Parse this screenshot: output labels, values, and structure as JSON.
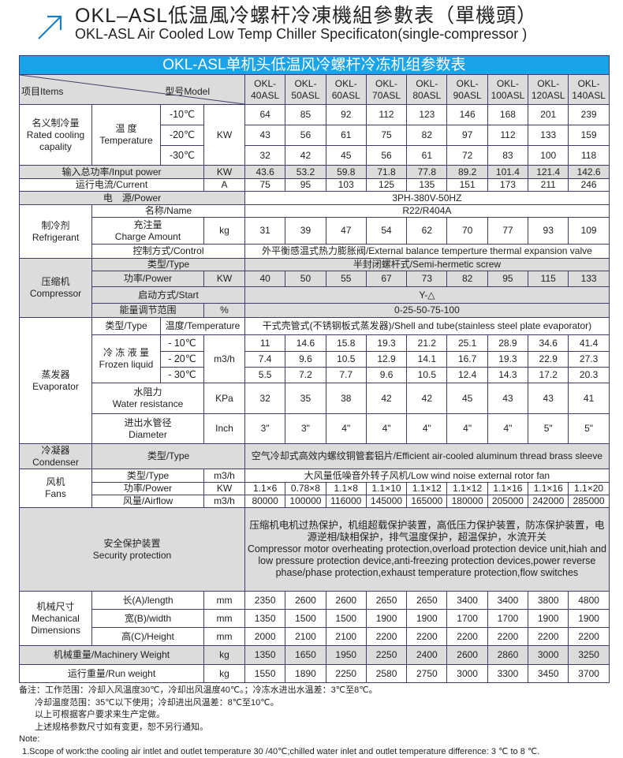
{
  "header": {
    "title_cn": "OKL–ASL低温風冷螺杆冷凍機組參數表（單機頭）",
    "title_en": "OKL-ASL Air Cooled Low Temp Chiller Specificaton(single-compressor )",
    "arrow_icon": "arrow-up-right-icon",
    "accent_color": "#1a7fc0"
  },
  "table": {
    "title": "OKL-ASL单机头低温风冷螺杆冷冻机组参数表",
    "title_bg": "#1aa3e8",
    "items_label": "项目Items",
    "model_label": "型号Model",
    "models": [
      [
        "OKL-",
        "40ASL"
      ],
      [
        "OKL-",
        "50ASL"
      ],
      [
        "OKL-",
        "60ASL"
      ],
      [
        "OKL-",
        "70ASL"
      ],
      [
        "OKL-",
        "80ASL"
      ],
      [
        "OKL-",
        "90ASL"
      ],
      [
        "OKL-",
        "100ASL"
      ],
      [
        "OKL-",
        "120ASL"
      ],
      [
        "OKL-",
        "140ASL"
      ]
    ],
    "cooling": {
      "label_cn": "名义制冷量",
      "label_en": "Rated cooling capality",
      "temp_cn": "温 度",
      "temp_en": "Temperature",
      "unit": "KW",
      "rows": [
        {
          "temp": "-10℃",
          "values": [
            "64",
            "85",
            "92",
            "112",
            "123",
            "146",
            "168",
            "201",
            "239"
          ]
        },
        {
          "temp": "-20℃",
          "values": [
            "43",
            "56",
            "61",
            "75",
            "82",
            "97",
            "112",
            "133",
            "159"
          ]
        },
        {
          "temp": "-30℃",
          "values": [
            "32",
            "42",
            "45",
            "56",
            "61",
            "72",
            "83",
            "100",
            "118"
          ]
        }
      ]
    },
    "input_power": {
      "label": "输入总功率/Input power",
      "unit": "KW",
      "values": [
        "43.6",
        "53.2",
        "59.8",
        "71.8",
        "77.8",
        "89.2",
        "101.4",
        "121.4",
        "142.6"
      ]
    },
    "current": {
      "label": "运行电流/Current",
      "unit": "A",
      "values": [
        "75",
        "95",
        "103",
        "125",
        "135",
        "151",
        "173",
        "211",
        "246"
      ]
    },
    "power": {
      "label": "电　源/Power",
      "value": "3PH-380V-50HZ"
    },
    "refrigerant": {
      "label_cn": "制冷剂",
      "label_en": "Refrigerant",
      "name_label": "名称/Name",
      "name_value": "R22/R404A",
      "charge_cn": "充注量",
      "charge_en": "Charge Amount",
      "charge_unit": "kg",
      "charge_values": [
        "31",
        "39",
        "47",
        "54",
        "62",
        "70",
        "77",
        "93",
        "109"
      ],
      "control_label": "控制方式/Control",
      "control_value": "外平衡感温式热力膨胀阀/External balance temperture thermal expansion valve"
    },
    "compressor": {
      "label_cn": "压缩机",
      "label_en": "Compressor",
      "type_label": "类型/Type",
      "type_value": "半封闭螺杆式/Semi-hermetic screw",
      "power_label": "功率/Power",
      "power_unit": "KW",
      "power_values": [
        "40",
        "50",
        "55",
        "67",
        "73",
        "82",
        "95",
        "115",
        "133"
      ],
      "start_label": "启动方式/Start",
      "start_value": "Y-△",
      "energy_label": "能量调节范围",
      "energy_unit": "%",
      "energy_value": "0-25-50-75-100"
    },
    "evaporator": {
      "label_cn": "蒸发器",
      "label_en": "Evaporator",
      "type_label": "类型/Type",
      "temp_label": "温度/Temperature",
      "type_value": "干式壳管式(不锈钢板式蒸发器)/Shell and tube(stainless steel plate evaporator)",
      "frozen_cn": "冷 冻 液 量",
      "frozen_en": "Frozen liquid",
      "frozen_unit": "m3/h",
      "frozen_rows": [
        {
          "temp": "- 10℃",
          "values": [
            "11",
            "14.6",
            "15.8",
            "19.3",
            "21.2",
            "25.1",
            "28.9",
            "34.6",
            "41.4"
          ]
        },
        {
          "temp": "- 20℃",
          "values": [
            "7.4",
            "9.6",
            "10.5",
            "12.9",
            "14.1",
            "16.7",
            "19.3",
            "22.9",
            "27.3"
          ]
        },
        {
          "temp": "- 30℃",
          "values": [
            "5.5",
            "7.2",
            "7.7",
            "9.6",
            "10.5",
            "12.4",
            "14.3",
            "17.2",
            "20.3"
          ]
        }
      ],
      "water_cn": "水阻力",
      "water_en": "Water resistance",
      "water_unit": "KPa",
      "water_values": [
        "32",
        "35",
        "38",
        "42",
        "42",
        "45",
        "43",
        "43",
        "41"
      ],
      "dia_cn": "进出水管径",
      "dia_en": "Diameter",
      "dia_unit": "Inch",
      "dia_values": [
        "3\"",
        "3\"",
        "4\"",
        "4\"",
        "4\"",
        "4\"",
        "4\"",
        "5\"",
        "5\""
      ]
    },
    "condenser": {
      "label_cn": "冷凝器",
      "label_en": "Condenser",
      "type_label": "类型/Type",
      "type_value": "空气冷却式高效内螺纹铜管套铝片/Efficient air-cooled aluminum thread brass sleeve"
    },
    "fans": {
      "label_cn": "风机",
      "label_en": "Fans",
      "type_label": "类型/Type",
      "type_unit": "m3/h",
      "type_value": "大风量低噪音外转子风机/Low wind noise external rotor fan",
      "power_label": "功率/Power",
      "power_unit": "KW",
      "power_values": [
        "1.1×6",
        "0.78×8",
        "1.1×8",
        "1.1×10",
        "1.1×12",
        "1.1×12",
        "1.1×16",
        "1.1×16",
        "1.1×20"
      ],
      "airflow_label": "风量/Airflow",
      "airflow_unit": "m3/h",
      "airflow_values": [
        "80000",
        "100000",
        "116000",
        "145000",
        "165000",
        "180000",
        "205000",
        "242000",
        "285000"
      ]
    },
    "security": {
      "label_cn": "安全保护装置",
      "label_en": "Security protection",
      "value_cn": "压缩机电机过热保护，机组超载保护装置，高低压力保护装置，防冻保护装置，电源逆相/缺相保护，排气温度保护，超温保护，水流开关",
      "value_en": "Compressor motor overheating protection,overload protection device unit,hiah and low pressure protection device,anti-freezing protection devices,power reverse phase/phase protection,exhaust temperature protection,flow switches"
    },
    "dimensions": {
      "label_cn": "机械尺寸",
      "label_en": "Mechanical Dimensions",
      "rows": [
        {
          "label": "长(A)/length",
          "unit": "mm",
          "values": [
            "2350",
            "2600",
            "2600",
            "2650",
            "2650",
            "3400",
            "3400",
            "3800",
            "4800"
          ]
        },
        {
          "label": "宽(B)/width",
          "unit": "mm",
          "values": [
            "1350",
            "1500",
            "1500",
            "1900",
            "1900",
            "1700",
            "1700",
            "1900",
            "1900"
          ]
        },
        {
          "label": "高(C)/Height",
          "unit": "mm",
          "values": [
            "2000",
            "2100",
            "2100",
            "2200",
            "2200",
            "2200",
            "2200",
            "2200",
            "2200"
          ]
        }
      ]
    },
    "machinery_weight": {
      "label": "机械重量/Machinery Weight",
      "unit": "kg",
      "values": [
        "1350",
        "1650",
        "1950",
        "2250",
        "2400",
        "2600",
        "2860",
        "3000",
        "3250"
      ]
    },
    "run_weight": {
      "label": "运行重量/Run weight",
      "unit": "kg",
      "values": [
        "1550",
        "1890",
        "2250",
        "2580",
        "2750",
        "3000",
        "3300",
        "3450",
        "3700"
      ]
    }
  },
  "notes": {
    "cn": [
      "备注：工作范围：冷却入风温度30℃，冷却出风温度40℃。；冷冻水进出水温差：3℃至8℃。",
      "冷却温度范围：35℃以下使用；冷却进出风温差：8℃至10℃。",
      "以上可根据客户要求来生产定做。",
      "上述规格参数尺寸如有变更，恕不另行通知。"
    ],
    "note_label": "Note:",
    "en": [
      "1.Scope of work:the cooling air intlet and  outlet temperature 30 /40℃;chilled water inlet and outlet temperature difference: 3 ℃ to 8 ℃."
    ]
  }
}
